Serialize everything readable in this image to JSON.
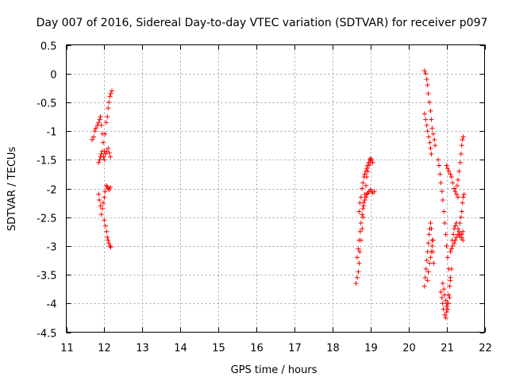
{
  "chart_data": {
    "type": "scatter",
    "title": "Day 007 of 2016, Sidereal Day-to-day VTEC variation (SDTVAR) for receiver p097",
    "xlabel": "GPS time / hours",
    "ylabel": "SDTVAR / TECUs",
    "xlim": [
      11,
      22
    ],
    "ylim": [
      -4.5,
      0.5
    ],
    "xticks": [
      11,
      12,
      13,
      14,
      15,
      16,
      17,
      18,
      19,
      20,
      21,
      22
    ],
    "yticks": [
      0.5,
      0,
      -0.5,
      -1,
      -1.5,
      -2,
      -2.5,
      -3,
      -3.5,
      -4,
      -4.5
    ],
    "xtick_labels": [
      "11",
      "12",
      "13",
      "14",
      "15",
      "16",
      "17",
      "18",
      "19",
      "20",
      "21",
      "22"
    ],
    "ytick_labels": [
      "0.5",
      "0",
      "-0.5",
      "-1",
      "-1.5",
      "-2",
      "-2.5",
      "-3",
      "-3.5",
      "-4",
      "-4.5"
    ],
    "grid": true,
    "marker": "plus",
    "color": "#ff0000",
    "series": [
      {
        "name": "SDTVAR",
        "clusters": [
          {
            "x": [
              11.68,
              11.72,
              11.75,
              11.78,
              11.82,
              11.85,
              11.88,
              11.9,
              11.92,
              11.95,
              11.97,
              12.0,
              12.02,
              12.05,
              12.08,
              12.1,
              12.12,
              12.15,
              12.17,
              12.2
            ],
            "y": [
              -1.15,
              -1.1,
              -1.0,
              -0.95,
              -0.9,
              -0.85,
              -0.8,
              -0.75,
              -0.9,
              -1.05,
              -1.2,
              -1.35,
              -1.05,
              -0.85,
              -0.75,
              -0.6,
              -0.5,
              -0.4,
              -0.35,
              -0.3
            ]
          },
          {
            "x": [
              11.85,
              11.88,
              11.9,
              11.92,
              11.95,
              11.98,
              12.0,
              12.03,
              12.06,
              12.1,
              12.13,
              12.16
            ],
            "y": [
              -1.55,
              -1.5,
              -1.45,
              -1.4,
              -1.35,
              -1.45,
              -1.5,
              -1.4,
              -1.35,
              -1.3,
              -1.38,
              -1.45
            ]
          },
          {
            "x": [
              11.85,
              11.87,
              11.9,
              11.92,
              11.95,
              11.97,
              12.0,
              12.02,
              12.05,
              12.08,
              12.1,
              12.13,
              12.16
            ],
            "y": [
              -2.1,
              -2.2,
              -2.3,
              -2.45,
              -2.35,
              -2.25,
              -2.15,
              -2.05,
              -1.95,
              -1.97,
              -2.0,
              -2.02,
              -1.98
            ]
          },
          {
            "x": [
              12.0,
              12.03,
              12.06,
              12.08,
              12.1,
              12.12,
              12.15,
              12.17
            ],
            "y": [
              -2.55,
              -2.65,
              -2.75,
              -2.85,
              -2.9,
              -2.95,
              -3.0,
              -3.02
            ]
          },
          {
            "x": [
              18.62,
              18.65,
              18.68,
              18.7,
              18.72,
              18.75,
              18.78,
              18.8,
              18.82,
              18.85,
              18.88,
              18.9,
              18.93,
              18.96,
              19.0,
              19.03,
              19.06
            ],
            "y": [
              -3.65,
              -3.55,
              -3.45,
              -3.3,
              -3.1,
              -2.9,
              -2.7,
              -2.5,
              -2.3,
              -2.1,
              -1.95,
              -1.8,
              -1.7,
              -1.6,
              -1.55,
              -1.5,
              -1.55
            ]
          },
          {
            "x": [
              18.65,
              18.68,
              18.7,
              18.73,
              18.75,
              18.78,
              18.8,
              18.82,
              18.85,
              18.88,
              18.9,
              18.93,
              18.96,
              19.0,
              19.03,
              19.06,
              19.1
            ],
            "y": [
              -3.2,
              -3.05,
              -2.9,
              -2.75,
              -2.6,
              -2.45,
              -2.35,
              -2.25,
              -2.2,
              -2.15,
              -2.1,
              -2.08,
              -2.05,
              -2.02,
              -2.05,
              -2.08,
              -2.05
            ]
          },
          {
            "x": [
              18.7,
              18.72,
              18.75,
              18.78,
              18.8,
              18.83,
              18.85,
              18.88,
              18.9,
              18.92,
              18.95,
              18.98,
              19.0
            ],
            "y": [
              -2.4,
              -2.25,
              -2.15,
              -2.0,
              -1.9,
              -1.8,
              -1.75,
              -1.7,
              -1.65,
              -1.6,
              -1.55,
              -1.5,
              -1.48
            ]
          },
          {
            "x": [
              20.42,
              20.45,
              20.48,
              20.5,
              20.52,
              20.55,
              20.58,
              20.6,
              20.62,
              20.65,
              20.68,
              20.7
            ],
            "y": [
              0.05,
              0.0,
              -0.1,
              -0.2,
              -0.35,
              -0.5,
              -0.65,
              -0.8,
              -0.95,
              -1.05,
              -1.15,
              -1.25
            ]
          },
          {
            "x": [
              20.42,
              20.45,
              20.48,
              20.5,
              20.53,
              20.56,
              20.58,
              20.6
            ],
            "y": [
              -0.7,
              -0.8,
              -0.9,
              -1.0,
              -1.1,
              -1.2,
              -1.3,
              -1.4
            ]
          },
          {
            "x": [
              20.42,
              20.44,
              20.46,
              20.48,
              20.5,
              20.52,
              20.54,
              20.56,
              20.58,
              20.6,
              20.62,
              20.64,
              20.66
            ],
            "y": [
              -3.7,
              -3.55,
              -3.4,
              -3.25,
              -3.1,
              -2.95,
              -2.8,
              -2.7,
              -2.6,
              -2.7,
              -2.9,
              -3.1,
              -3.3
            ]
          },
          {
            "x": [
              20.5,
              20.52,
              20.55,
              20.58,
              20.6,
              20.62,
              20.65
            ],
            "y": [
              -3.6,
              -3.45,
              -3.3,
              -3.2,
              -3.1,
              -3.0,
              -2.9
            ]
          },
          {
            "x": [
              20.78,
              20.8,
              20.83,
              20.85,
              20.88,
              20.9,
              20.93,
              20.95,
              20.98,
              21.0,
              21.03,
              21.06,
              21.1
            ],
            "y": [
              -1.5,
              -1.6,
              -1.75,
              -1.9,
              -2.05,
              -2.2,
              -2.4,
              -2.6,
              -2.8,
              -3.0,
              -3.2,
              -3.4,
              -3.6
            ]
          },
          {
            "x": [
              20.85,
              20.88,
              20.9,
              20.92,
              20.95,
              20.98,
              21.0,
              21.02,
              21.05,
              21.08,
              21.1,
              21.13
            ],
            "y": [
              -3.8,
              -3.9,
              -4.0,
              -4.1,
              -4.2,
              -4.25,
              -4.15,
              -4.0,
              -3.85,
              -3.7,
              -3.55,
              -3.4
            ]
          },
          {
            "x": [
              20.9,
              20.93,
              20.95,
              20.98,
              21.0,
              21.03,
              21.05,
              21.08
            ],
            "y": [
              -3.65,
              -3.75,
              -3.85,
              -3.95,
              -4.05,
              -4.1,
              -4.0,
              -3.9
            ]
          },
          {
            "x": [
              21.0,
              21.03,
              21.06,
              21.1,
              21.13,
              21.16,
              21.2,
              21.23,
              21.26,
              21.3
            ],
            "y": [
              -1.6,
              -1.65,
              -1.7,
              -1.75,
              -1.8,
              -1.9,
              -2.0,
              -2.05,
              -2.1,
              -2.15
            ]
          },
          {
            "x": [
              21.1,
              21.13,
              21.16,
              21.2,
              21.23,
              21.26,
              21.3,
              21.33,
              21.36,
              21.4,
              21.43
            ],
            "y": [
              -3.1,
              -3.05,
              -3.0,
              -2.95,
              -2.9,
              -2.85,
              -2.8,
              -2.75,
              -2.8,
              -2.85,
              -2.9
            ]
          },
          {
            "x": [
              21.15,
              21.18,
              21.2,
              21.23,
              21.26,
              21.3,
              21.33,
              21.36,
              21.4,
              21.43
            ],
            "y": [
              -2.9,
              -2.8,
              -2.7,
              -2.65,
              -2.6,
              -2.7,
              -2.8,
              -2.85,
              -2.8,
              -2.75
            ]
          },
          {
            "x": [
              21.28,
              21.3,
              21.33,
              21.36,
              21.38,
              21.4,
              21.42,
              21.44
            ],
            "y": [
              -1.95,
              -1.85,
              -1.7,
              -1.55,
              -1.4,
              -1.25,
              -1.15,
              -1.1
            ]
          },
          {
            "x": [
              21.35,
              21.38,
              21.4,
              21.42,
              21.44,
              21.46
            ],
            "y": [
              -2.6,
              -2.5,
              -2.4,
              -2.25,
              -2.15,
              -2.1
            ]
          }
        ]
      }
    ]
  }
}
